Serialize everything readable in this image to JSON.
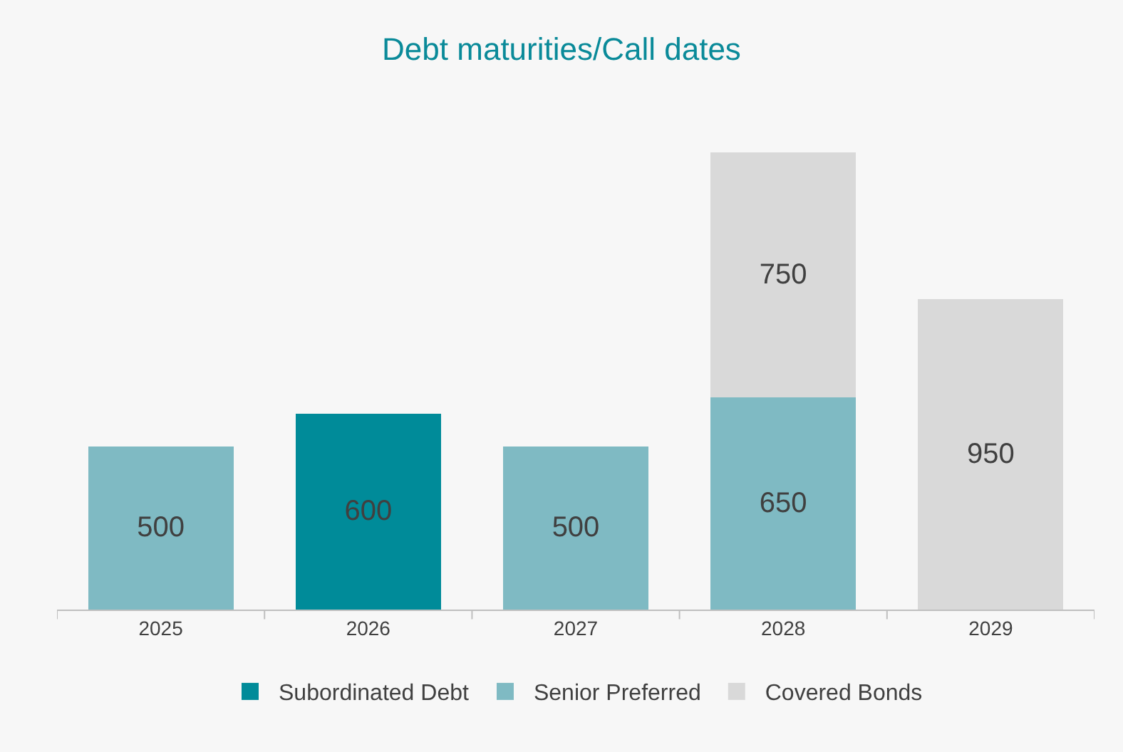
{
  "chart_data": {
    "type": "bar",
    "title": "Debt maturities/Call dates",
    "categories": [
      "2025",
      "2026",
      "2027",
      "2028",
      "2029"
    ],
    "stacked": true,
    "data_labels": true,
    "legend": "bottom",
    "grid": false,
    "series": [
      {
        "name": "Subordinated Debt",
        "color": "#008b99",
        "values": [
          null,
          600,
          null,
          null,
          null
        ]
      },
      {
        "name": "Senior Preferred",
        "color": "#7fbac3",
        "values": [
          500,
          null,
          500,
          650,
          null
        ]
      },
      {
        "name": "Covered Bonds",
        "color": "#d9d9d9",
        "values": [
          null,
          null,
          null,
          750,
          950
        ]
      }
    ]
  }
}
